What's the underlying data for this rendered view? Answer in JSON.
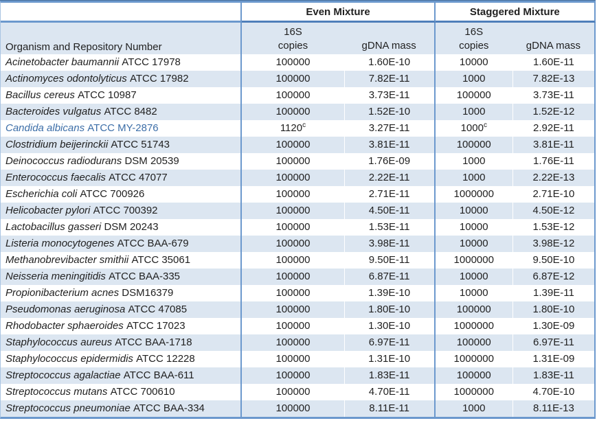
{
  "colors": {
    "border_blue": "#6B98CD",
    "border_blue_dark": "#4F7FBA",
    "row_stripe": "#DCE6F1",
    "highlight_text": "#3C6EA8",
    "text": "#212121"
  },
  "table": {
    "groups": [
      "Even Mixture",
      "Staggered Mixture"
    ],
    "organism_header": "Organism and Repository Number",
    "subheader": {
      "s16": "16S",
      "copies": "copies",
      "gdna": "gDNA mass"
    },
    "rows": [
      {
        "species": "Acinetobacter baumannii",
        "repo": "ATCC 17978",
        "even_copies": "100000",
        "even_sup": "",
        "even_gdna": "1.60E-10",
        "stag_copies": "10000",
        "stag_sup": "",
        "stag_gdna": "1.60E-11",
        "highlight": false
      },
      {
        "species": "Actinomyces odontolyticus",
        "repo": "ATCC 17982",
        "even_copies": "100000",
        "even_sup": "",
        "even_gdna": "7.82E-11",
        "stag_copies": "1000",
        "stag_sup": "",
        "stag_gdna": "7.82E-13",
        "highlight": false
      },
      {
        "species": "Bacillus cereus",
        "repo": "ATCC 10987",
        "even_copies": "100000",
        "even_sup": "",
        "even_gdna": "3.73E-11",
        "stag_copies": "100000",
        "stag_sup": "",
        "stag_gdna": "3.73E-11",
        "highlight": false
      },
      {
        "species": "Bacteroides vulgatus",
        "repo": "ATCC 8482",
        "even_copies": "100000",
        "even_sup": "",
        "even_gdna": "1.52E-10",
        "stag_copies": "1000",
        "stag_sup": "",
        "stag_gdna": "1.52E-12",
        "highlight": false
      },
      {
        "species": "Candida albicans",
        "repo": "ATCC MY-2876",
        "even_copies": "1120",
        "even_sup": "c",
        "even_gdna": "3.27E-11",
        "stag_copies": "1000",
        "stag_sup": "c",
        "stag_gdna": "2.92E-11",
        "highlight": true
      },
      {
        "species": "Clostridium beijerinckii",
        "repo": "ATCC 51743",
        "even_copies": "100000",
        "even_sup": "",
        "even_gdna": "3.81E-11",
        "stag_copies": "100000",
        "stag_sup": "",
        "stag_gdna": "3.81E-11",
        "highlight": false
      },
      {
        "species": "Deinococcus radiodurans",
        "repo": "DSM 20539",
        "even_copies": "100000",
        "even_sup": "",
        "even_gdna": "1.76E-09",
        "stag_copies": "1000",
        "stag_sup": "",
        "stag_gdna": "1.76E-11",
        "highlight": false
      },
      {
        "species": "Enterococcus faecalis",
        "repo": "ATCC 47077",
        "even_copies": "100000",
        "even_sup": "",
        "even_gdna": "2.22E-11",
        "stag_copies": "1000",
        "stag_sup": "",
        "stag_gdna": "2.22E-13",
        "highlight": false
      },
      {
        "species": "Escherichia coli",
        "repo": "ATCC 700926",
        "even_copies": "100000",
        "even_sup": "",
        "even_gdna": "2.71E-11",
        "stag_copies": "1000000",
        "stag_sup": "",
        "stag_gdna": "2.71E-10",
        "highlight": false
      },
      {
        "species": "Helicobacter pylori",
        "repo": "ATCC 700392",
        "even_copies": "100000",
        "even_sup": "",
        "even_gdna": "4.50E-11",
        "stag_copies": "10000",
        "stag_sup": "",
        "stag_gdna": "4.50E-12",
        "highlight": false
      },
      {
        "species": "Lactobacillus gasseri",
        "repo": "DSM 20243",
        "even_copies": "100000",
        "even_sup": "",
        "even_gdna": "1.53E-11",
        "stag_copies": "10000",
        "stag_sup": "",
        "stag_gdna": "1.53E-12",
        "highlight": false
      },
      {
        "species": "Listeria monocytogenes",
        "repo": "ATCC BAA-679",
        "even_copies": "100000",
        "even_sup": "",
        "even_gdna": "3.98E-11",
        "stag_copies": "10000",
        "stag_sup": "",
        "stag_gdna": "3.98E-12",
        "highlight": false
      },
      {
        "species": "Methanobrevibacter smithii",
        "repo": "ATCC 35061",
        "even_copies": "100000",
        "even_sup": "",
        "even_gdna": "9.50E-11",
        "stag_copies": "1000000",
        "stag_sup": "",
        "stag_gdna": "9.50E-10",
        "highlight": false
      },
      {
        "species": "Neisseria meningitidis",
        "repo": "ATCC BAA-335",
        "even_copies": "100000",
        "even_sup": "",
        "even_gdna": "6.87E-11",
        "stag_copies": "10000",
        "stag_sup": "",
        "stag_gdna": "6.87E-12",
        "highlight": false
      },
      {
        "species": "Propionibacterium acnes",
        "repo": "DSM16379",
        "even_copies": "100000",
        "even_sup": "",
        "even_gdna": "1.39E-10",
        "stag_copies": "10000",
        "stag_sup": "",
        "stag_gdna": "1.39E-11",
        "highlight": false
      },
      {
        "species": "Pseudomonas aeruginosa",
        "repo": "ATCC 47085",
        "even_copies": "100000",
        "even_sup": "",
        "even_gdna": "1.80E-10",
        "stag_copies": "100000",
        "stag_sup": "",
        "stag_gdna": "1.80E-10",
        "highlight": false
      },
      {
        "species": "Rhodobacter sphaeroides",
        "repo": "ATCC 17023",
        "even_copies": "100000",
        "even_sup": "",
        "even_gdna": "1.30E-10",
        "stag_copies": "1000000",
        "stag_sup": "",
        "stag_gdna": "1.30E-09",
        "highlight": false
      },
      {
        "species": "Staphylococcus aureus",
        "repo": "ATCC BAA-1718",
        "even_copies": "100000",
        "even_sup": "",
        "even_gdna": "6.97E-11",
        "stag_copies": "100000",
        "stag_sup": "",
        "stag_gdna": "6.97E-11",
        "highlight": false
      },
      {
        "species": "Staphylococcus epidermidis",
        "repo": "ATCC 12228",
        "even_copies": "100000",
        "even_sup": "",
        "even_gdna": "1.31E-10",
        "stag_copies": "1000000",
        "stag_sup": "",
        "stag_gdna": "1.31E-09",
        "highlight": false
      },
      {
        "species": "Streptococcus agalactiae",
        "repo": "ATCC BAA-611",
        "even_copies": "100000",
        "even_sup": "",
        "even_gdna": "1.83E-11",
        "stag_copies": "100000",
        "stag_sup": "",
        "stag_gdna": "1.83E-11",
        "highlight": false
      },
      {
        "species": "Streptococcus mutans",
        "repo": "ATCC 700610",
        "even_copies": "100000",
        "even_sup": "",
        "even_gdna": "4.70E-11",
        "stag_copies": "1000000",
        "stag_sup": "",
        "stag_gdna": "4.70E-10",
        "highlight": false
      },
      {
        "species": "Streptococcus pneumoniae",
        "repo": "ATCC BAA-334",
        "even_copies": "100000",
        "even_sup": "",
        "even_gdna": "8.11E-11",
        "stag_copies": "1000",
        "stag_sup": "",
        "stag_gdna": "8.11E-13",
        "highlight": false
      }
    ]
  }
}
